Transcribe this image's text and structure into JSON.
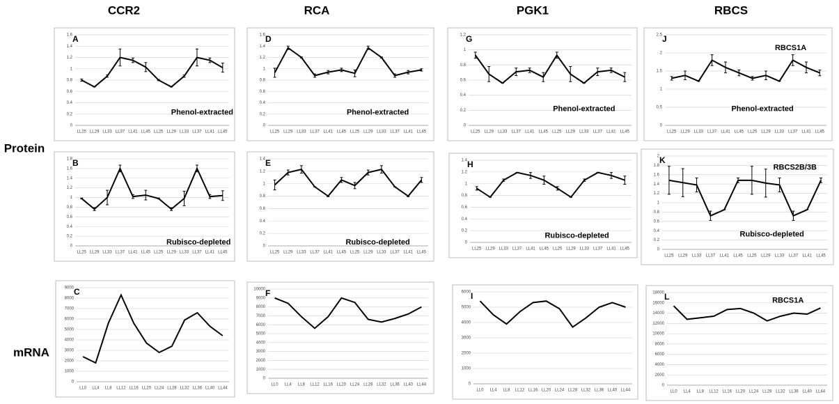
{
  "column_titles": [
    "CCR2",
    "RCA",
    "PGK1",
    "RBCS"
  ],
  "row_labels": [
    "Protein",
    "mRNA"
  ],
  "chart_data": [
    {
      "type": "line",
      "label": "A",
      "annotations": [
        "Phenol-extracted"
      ],
      "color": "#000000",
      "categories": [
        "LL25",
        "LL29",
        "LL33",
        "LL37",
        "LL41",
        "LL45",
        "LL25",
        "LL29",
        "LL33",
        "LL37",
        "LL41",
        "LL45"
      ],
      "values": [
        0.8,
        0.68,
        0.87,
        1.2,
        1.15,
        1.03,
        0.8,
        0.68,
        0.87,
        1.2,
        1.15,
        1.02
      ],
      "errors": [
        0.02,
        0,
        0.02,
        0.15,
        0.04,
        0.08,
        0.01,
        0,
        0.02,
        0.15,
        0.04,
        0.08
      ],
      "ylim": [
        0,
        1.6
      ],
      "yticks": [
        0,
        0.2,
        0.4,
        0.6,
        0.8,
        1,
        1.2,
        1.4,
        1.6
      ],
      "grid": true
    },
    {
      "type": "line",
      "label": "D",
      "annotations": [
        "Phenol-extracted"
      ],
      "color": "#000000",
      "categories": [
        "LL25",
        "LL29",
        "LL33",
        "LL37",
        "LL41",
        "LL45",
        "LL25",
        "LL29",
        "LL33",
        "LL37",
        "LL41",
        "LL45"
      ],
      "values": [
        0.93,
        1.37,
        1.2,
        0.88,
        0.94,
        0.98,
        0.92,
        1.37,
        1.2,
        0.88,
        0.94,
        0.98
      ],
      "errors": [
        0.08,
        0.03,
        0.01,
        0.03,
        0.03,
        0.03,
        0.06,
        0.03,
        0.01,
        0.03,
        0.03,
        0.02
      ],
      "ylim": [
        0,
        1.6
      ],
      "yticks": [
        0,
        0.2,
        0.4,
        0.6,
        0.8,
        1,
        1.2,
        1.4,
        1.6
      ],
      "grid": true
    },
    {
      "type": "line",
      "label": "G",
      "annotations": [
        "Phenol-extracted"
      ],
      "color": "#000000",
      "categories": [
        "LL25",
        "LL29",
        "LL33",
        "LL37",
        "LL41",
        "LL45",
        "LL25",
        "LL29",
        "LL33",
        "LL37",
        "LL41",
        "LL45"
      ],
      "values": [
        0.93,
        0.68,
        0.56,
        0.71,
        0.73,
        0.64,
        0.93,
        0.68,
        0.56,
        0.71,
        0.73,
        0.64
      ],
      "errors": [
        0.04,
        0.1,
        0,
        0.05,
        0.03,
        0.06,
        0.04,
        0.1,
        0,
        0.05,
        0.03,
        0.06
      ],
      "ylim": [
        0,
        1.2
      ],
      "yticks": [
        0,
        0.2,
        0.4,
        0.6,
        0.8,
        1,
        1.2
      ],
      "grid": true
    },
    {
      "type": "line",
      "label": "J",
      "annotations": [
        "RBCS1A",
        "Phenol-extracted"
      ],
      "color": "#000000",
      "categories": [
        "LL25",
        "LL29",
        "LL33",
        "LL37",
        "LL41",
        "LL45",
        "LL25",
        "LL29",
        "LL33",
        "LL37",
        "LL41",
        "LL45"
      ],
      "values": [
        1.3,
        1.38,
        1.22,
        1.8,
        1.6,
        1.45,
        1.3,
        1.38,
        1.22,
        1.8,
        1.6,
        1.45
      ],
      "errors": [
        0.05,
        0.12,
        0,
        0.15,
        0.15,
        0.08,
        0.05,
        0.12,
        0,
        0.15,
        0.15,
        0.08
      ],
      "ylim": [
        0,
        2.5
      ],
      "yticks": [
        0,
        0.5,
        1,
        1.5,
        2,
        2.5
      ],
      "grid": true
    },
    {
      "type": "line",
      "label": "B",
      "annotations": [
        "Rubisco-depleted"
      ],
      "color": "#000000",
      "categories": [
        "LL25",
        "LL29",
        "LL33",
        "LL37",
        "LL41",
        "LL45",
        "LL25",
        "LL29",
        "LL33",
        "LL37",
        "LL41",
        "LL45"
      ],
      "values": [
        0.98,
        0.76,
        1.0,
        1.6,
        1.02,
        1.05,
        0.98,
        0.76,
        0.98,
        1.6,
        1.02,
        1.04
      ],
      "errors": [
        0.01,
        0.03,
        0.15,
        0.07,
        0.04,
        0.1,
        0.01,
        0.03,
        0.15,
        0.07,
        0.04,
        0.1
      ],
      "ylim": [
        0,
        1.8
      ],
      "yticks": [
        0,
        0.2,
        0.4,
        0.6,
        0.8,
        1,
        1.2,
        1.4,
        1.6,
        1.8
      ],
      "grid": true
    },
    {
      "type": "line",
      "label": "E",
      "annotations": [
        "Rubisco-depleted"
      ],
      "color": "#000000",
      "categories": [
        "LL25",
        "LL29",
        "LL33",
        "LL37",
        "LL41",
        "LL45",
        "LL25",
        "LL29",
        "LL33",
        "LL37",
        "LL41",
        "LL45"
      ],
      "values": [
        0.98,
        1.18,
        1.23,
        0.95,
        0.8,
        1.06,
        0.97,
        1.18,
        1.23,
        0.95,
        0.8,
        1.06
      ],
      "errors": [
        0.08,
        0.04,
        0.06,
        0,
        0.01,
        0.04,
        0.05,
        0.04,
        0.06,
        0,
        0.01,
        0.04
      ],
      "ylim": [
        0,
        1.4
      ],
      "yticks": [
        0,
        0.2,
        0.4,
        0.6,
        0.8,
        1,
        1.2,
        1.4
      ],
      "grid": true
    },
    {
      "type": "line",
      "label": "H",
      "annotations": [
        "Rubisco-depleted"
      ],
      "color": "#000000",
      "categories": [
        "LL25",
        "LL29",
        "LL33",
        "LL37",
        "LL41",
        "LL45",
        "LL25",
        "LL29",
        "LL33",
        "LL37",
        "LL41",
        "LL45"
      ],
      "values": [
        0.92,
        0.77,
        1.06,
        1.19,
        1.14,
        1.06,
        0.92,
        0.77,
        1.06,
        1.19,
        1.14,
        1.06
      ],
      "errors": [
        0.03,
        0,
        0.02,
        0,
        0.05,
        0.07,
        0.03,
        0,
        0.02,
        0,
        0.05,
        0.07
      ],
      "ylim": [
        0,
        1.4
      ],
      "yticks": [
        0,
        0.2,
        0.4,
        0.6,
        0.8,
        1,
        1.2,
        1.4
      ],
      "grid": true
    },
    {
      "type": "line",
      "label": "K",
      "annotations": [
        "RBCS2B/3B",
        "Rubisco-depleted"
      ],
      "color": "#000000",
      "categories": [
        "LL25",
        "LL29",
        "LL33",
        "LL37",
        "LL41",
        "LL45",
        "LL25",
        "LL29",
        "LL33",
        "LL37",
        "LL41",
        "LL45"
      ],
      "values": [
        1.48,
        1.43,
        1.38,
        0.72,
        0.85,
        1.48,
        1.48,
        1.42,
        1.38,
        0.72,
        0.85,
        1.48
      ],
      "errors": [
        0.3,
        0.3,
        0.15,
        0.1,
        0,
        0.05,
        0.3,
        0.3,
        0.15,
        0.1,
        0,
        0.05
      ],
      "ylim": [
        0,
        2
      ],
      "yticks": [
        0,
        0.2,
        0.4,
        0.6,
        0.8,
        1,
        1.2,
        1.4,
        1.6,
        1.8,
        2
      ],
      "grid": true
    },
    {
      "type": "line",
      "label": "C",
      "annotations": [],
      "color": "#000000",
      "categories": [
        "LL0",
        "LL4",
        "LL8",
        "LL12",
        "LL16",
        "LL20",
        "LL24",
        "LL28",
        "LL32",
        "LL36",
        "LL40",
        "LL44"
      ],
      "values": [
        2400,
        1800,
        5600,
        8300,
        5600,
        3700,
        2800,
        3400,
        5900,
        6600,
        5300,
        4400
      ],
      "ylim": [
        0,
        9000
      ],
      "yticks": [
        0,
        1000,
        2000,
        3000,
        4000,
        5000,
        6000,
        7000,
        8000,
        9000
      ],
      "grid": true
    },
    {
      "type": "line",
      "label": "F",
      "annotations": [],
      "color": "#000000",
      "categories": [
        "LL0",
        "LL4",
        "LL8",
        "LL12",
        "LL16",
        "LL20",
        "LL24",
        "LL28",
        "LL32",
        "LL36",
        "LL40",
        "LL44"
      ],
      "values": [
        9000,
        8400,
        6900,
        5600,
        6900,
        9000,
        8500,
        6600,
        6300,
        6700,
        7200,
        8000
      ],
      "ylim": [
        0,
        10000
      ],
      "yticks": [
        0,
        1000,
        2000,
        3000,
        4000,
        5000,
        6000,
        7000,
        8000,
        9000,
        10000
      ],
      "grid": true
    },
    {
      "type": "line",
      "label": "I",
      "annotations": [],
      "color": "#000000",
      "categories": [
        "LL0",
        "LL4",
        "LL8",
        "LL12",
        "LL16",
        "LL20",
        "LL24",
        "LL28",
        "LL32",
        "LL36",
        "LL40",
        "LL44"
      ],
      "values": [
        5400,
        4500,
        3900,
        4700,
        5300,
        5400,
        4900,
        3700,
        4300,
        5000,
        5300,
        5000
      ],
      "ylim": [
        0,
        6000
      ],
      "yticks": [
        0,
        1000,
        2000,
        3000,
        4000,
        5000,
        6000
      ],
      "grid": true
    },
    {
      "type": "line",
      "label": "L",
      "annotations": [
        "RBCS1A"
      ],
      "color": "#000000",
      "categories": [
        "LL0",
        "LL4",
        "LL8",
        "LL12",
        "LL16",
        "LL20",
        "LL24",
        "LL28",
        "LL32",
        "LL36",
        "LL40",
        "LL44"
      ],
      "values": [
        15400,
        12800,
        13100,
        13400,
        14700,
        14900,
        14000,
        12500,
        13400,
        14000,
        13800,
        15000
      ],
      "ylim": [
        0,
        18000
      ],
      "yticks": [
        0,
        2000,
        4000,
        6000,
        8000,
        10000,
        12000,
        14000,
        16000,
        18000
      ],
      "grid": true
    }
  ]
}
